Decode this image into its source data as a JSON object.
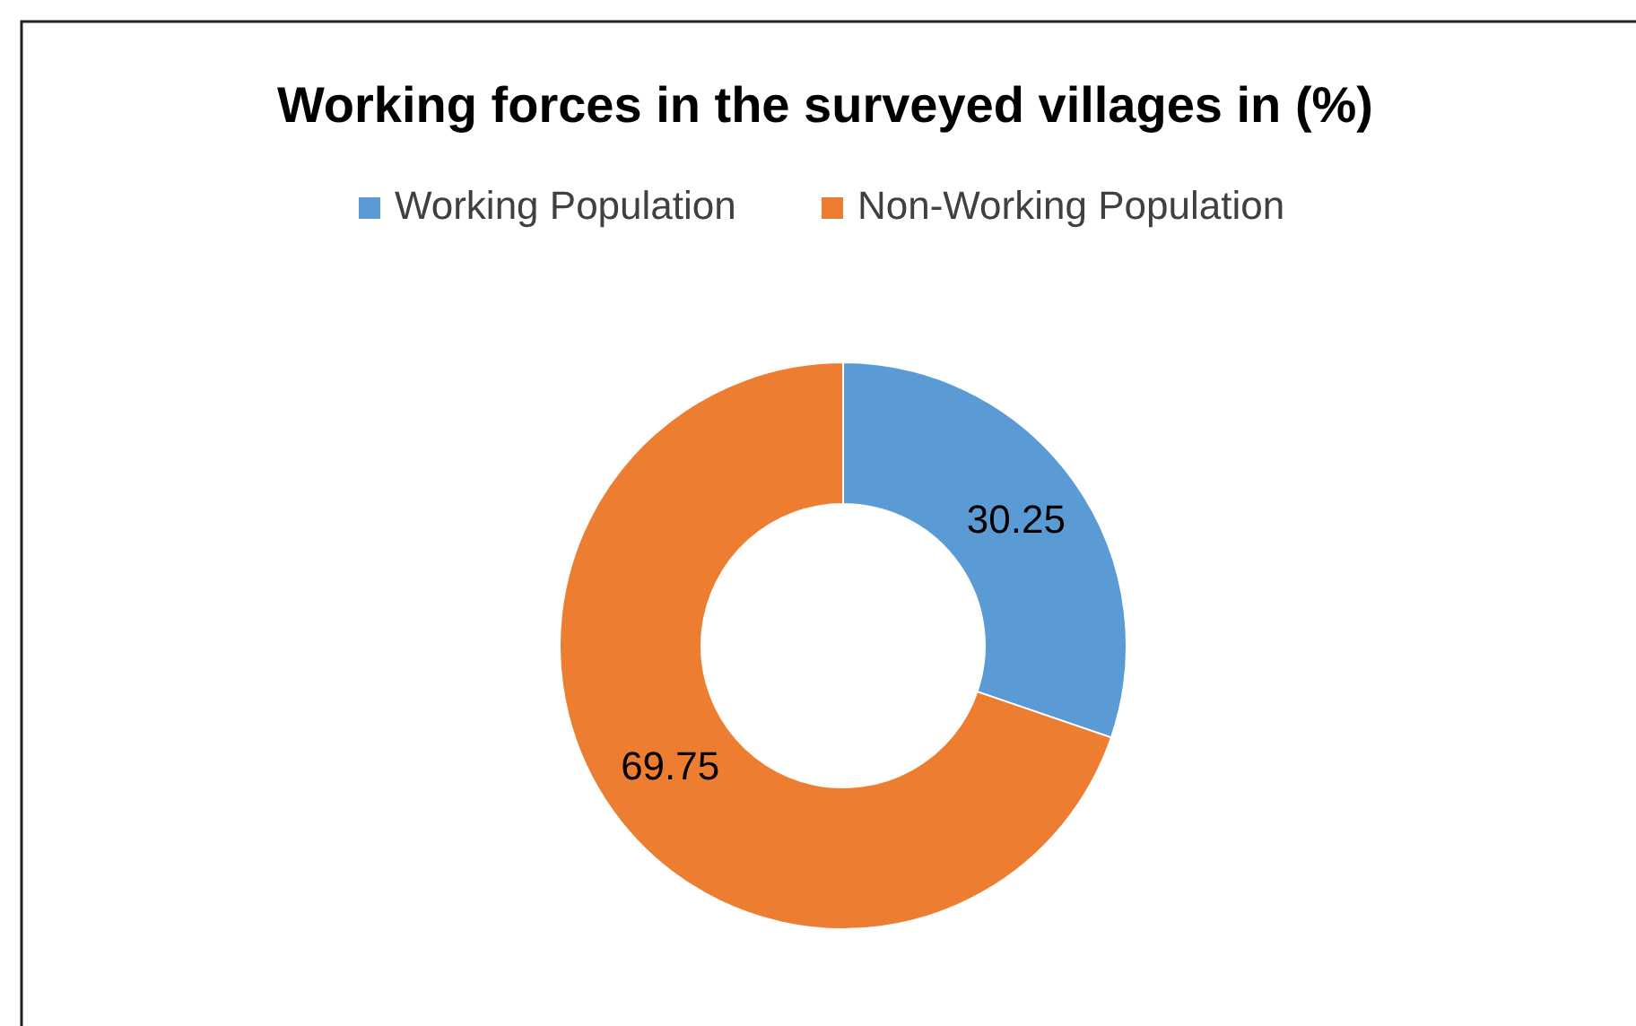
{
  "chart_data": {
    "type": "donut",
    "title": "Working forces in the surveyed villages in (%)",
    "categories": [
      "Working Population",
      "Non-Working Population"
    ],
    "values": [
      30.25,
      69.75
    ],
    "colors": [
      "#5b9bd5",
      "#ed7d31"
    ],
    "data_labels": true,
    "legend": "top"
  }
}
